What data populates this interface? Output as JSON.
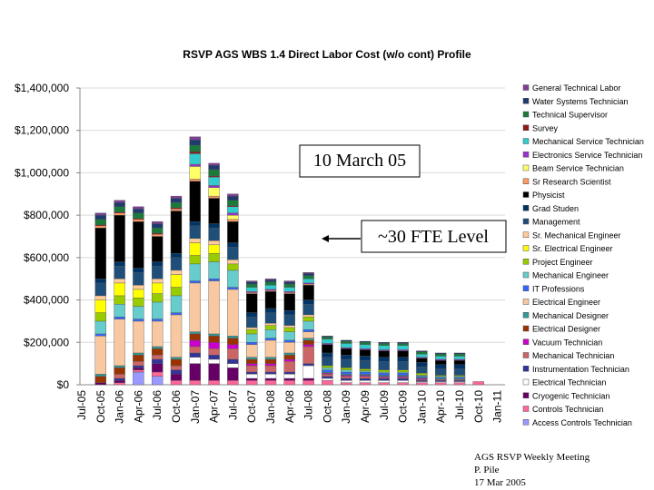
{
  "chart_data": {
    "type": "stacked_bar",
    "title": "RSVP AGS WBS 1.4 Direct Labor Cost (w/o cont) Profile",
    "annotations": [
      "10 March 05",
      "~30  FTE Level"
    ],
    "footer": [
      "AGS RSVP Weekly Meeting",
      "P. Pile",
      "17 Mar 2005"
    ],
    "categories": [
      "Jul-05",
      "Oct-05",
      "Jan-06",
      "Apr-06",
      "Jul-06",
      "Oct-06",
      "Jan-07",
      "Apr-07",
      "Jul-07",
      "Oct-07",
      "Jan-08",
      "Apr-08",
      "Jul-08",
      "Oct-08",
      "Jan-09",
      "Apr-09",
      "Jul-09",
      "Oct-09",
      "Jan-10",
      "Apr-10",
      "Jul-10",
      "Oct-10",
      "Jan-11"
    ],
    "ylim": [
      0,
      1400000
    ],
    "yticks": [
      {
        "value": 0,
        "label": "$0"
      },
      {
        "value": 200000,
        "label": "$200,000"
      },
      {
        "value": 400000,
        "label": "$400,000"
      },
      {
        "value": 600000,
        "label": "$600,000"
      },
      {
        "value": 800000,
        "label": "$800,000"
      },
      {
        "value": 1000000,
        "label": "$1,000,000"
      },
      {
        "value": 1200000,
        "label": "$1,200,000"
      },
      {
        "value": 1400000,
        "label": "$1,400,000"
      }
    ],
    "grid": true,
    "legend": "right",
    "series": [
      {
        "name": "General Technical Labor",
        "color": "#7f3f98",
        "values": [
          0,
          10000,
          10000,
          10000,
          10000,
          10000,
          15000,
          10000,
          10000,
          5000,
          5000,
          5000,
          5000,
          0,
          0,
          0,
          0,
          0,
          0,
          0,
          0,
          0,
          0
        ]
      },
      {
        "name": "Water Systems Technician",
        "color": "#1f3a6e",
        "values": [
          0,
          20000,
          20000,
          20000,
          20000,
          20000,
          25000,
          20000,
          20000,
          10000,
          10000,
          10000,
          10000,
          5000,
          5000,
          5000,
          5000,
          5000,
          5000,
          5000,
          5000,
          0,
          0
        ]
      },
      {
        "name": "Technical Supervisor",
        "color": "#1a7a3a",
        "values": [
          0,
          25000,
          25000,
          25000,
          25000,
          25000,
          30000,
          30000,
          25000,
          15000,
          15000,
          15000,
          15000,
          10000,
          10000,
          10000,
          10000,
          10000,
          10000,
          10000,
          10000,
          0,
          0
        ]
      },
      {
        "name": "Survey",
        "color": "#8b1a1a",
        "values": [
          0,
          5000,
          5000,
          5000,
          5000,
          5000,
          10000,
          5000,
          5000,
          0,
          0,
          0,
          0,
          0,
          0,
          0,
          0,
          0,
          0,
          0,
          0,
          0,
          0
        ]
      },
      {
        "name": "Mechanical Service Technician",
        "color": "#33cccc",
        "values": [
          0,
          0,
          0,
          0,
          0,
          0,
          50000,
          40000,
          30000,
          20000,
          20000,
          20000,
          20000,
          20000,
          20000,
          20000,
          20000,
          20000,
          15000,
          15000,
          15000,
          0,
          0
        ]
      },
      {
        "name": "Electronics Service Technician",
        "color": "#9933cc",
        "values": [
          0,
          0,
          0,
          0,
          0,
          0,
          10000,
          10000,
          10000,
          5000,
          5000,
          5000,
          5000,
          5000,
          5000,
          5000,
          5000,
          5000,
          5000,
          5000,
          5000,
          0,
          0
        ]
      },
      {
        "name": "Beam Service Technician",
        "color": "#ffff66",
        "values": [
          0,
          0,
          0,
          0,
          0,
          0,
          60000,
          40000,
          20000,
          0,
          0,
          0,
          0,
          0,
          0,
          0,
          0,
          0,
          0,
          0,
          0,
          0,
          0
        ]
      },
      {
        "name": "Sr Research Scientist",
        "color": "#ff9966",
        "values": [
          0,
          10000,
          10000,
          10000,
          10000,
          10000,
          10000,
          10000,
          10000,
          5000,
          5000,
          5000,
          5000,
          0,
          0,
          0,
          0,
          0,
          0,
          0,
          0,
          0,
          0
        ]
      },
      {
        "name": "Physicist",
        "color": "#000000",
        "values": [
          0,
          240000,
          220000,
          220000,
          120000,
          200000,
          190000,
          120000,
          100000,
          90000,
          80000,
          80000,
          70000,
          40000,
          30000,
          30000,
          30000,
          30000,
          20000,
          20000,
          20000,
          0,
          0
        ]
      },
      {
        "name": "Grad Studen",
        "color": "#003366",
        "values": [
          0,
          20000,
          20000,
          20000,
          20000,
          20000,
          20000,
          20000,
          20000,
          20000,
          20000,
          20000,
          20000,
          20000,
          20000,
          20000,
          20000,
          20000,
          20000,
          20000,
          20000,
          0,
          0
        ]
      },
      {
        "name": "Management",
        "color": "#1f4e79",
        "values": [
          0,
          60000,
          60000,
          60000,
          60000,
          60000,
          60000,
          60000,
          60000,
          50000,
          50000,
          50000,
          50000,
          40000,
          40000,
          40000,
          40000,
          40000,
          30000,
          30000,
          30000,
          0,
          0
        ]
      },
      {
        "name": "Sr. Mechanical Engineer",
        "color": "#ffcc99",
        "values": [
          0,
          20000,
          20000,
          20000,
          20000,
          20000,
          20000,
          20000,
          20000,
          10000,
          10000,
          10000,
          10000,
          0,
          0,
          0,
          0,
          0,
          0,
          0,
          0,
          0,
          0
        ]
      },
      {
        "name": "Sr. Electrical Engineer",
        "color": "#ffff00",
        "values": [
          0,
          60000,
          60000,
          40000,
          50000,
          60000,
          60000,
          40000,
          0,
          0,
          0,
          0,
          0,
          0,
          0,
          0,
          0,
          0,
          0,
          0,
          0,
          0,
          0
        ]
      },
      {
        "name": "Project Engineer",
        "color": "#99cc00",
        "values": [
          0,
          40000,
          40000,
          40000,
          40000,
          40000,
          40000,
          40000,
          30000,
          20000,
          20000,
          20000,
          20000,
          10000,
          10000,
          10000,
          10000,
          10000,
          10000,
          5000,
          5000,
          0,
          0
        ]
      },
      {
        "name": "Mechanical Engineer",
        "color": "#66cccc",
        "values": [
          0,
          60000,
          60000,
          60000,
          80000,
          80000,
          80000,
          80000,
          80000,
          40000,
          40000,
          40000,
          40000,
          10000,
          10000,
          5000,
          5000,
          5000,
          5000,
          5000,
          5000,
          0,
          0
        ]
      },
      {
        "name": "IT Professions",
        "color": "#3366ff",
        "values": [
          0,
          10000,
          10000,
          10000,
          10000,
          10000,
          10000,
          10000,
          10000,
          10000,
          10000,
          10000,
          10000,
          10000,
          10000,
          10000,
          10000,
          10000,
          5000,
          5000,
          5000,
          0,
          0
        ]
      },
      {
        "name": "Electrical Engineer",
        "color": "#f8c8a0",
        "values": [
          0,
          180000,
          220000,
          150000,
          120000,
          200000,
          230000,
          250000,
          220000,
          60000,
          80000,
          50000,
          30000,
          0,
          0,
          0,
          0,
          0,
          0,
          0,
          0,
          0,
          0
        ]
      },
      {
        "name": "Mechanical Designer",
        "color": "#339999",
        "values": [
          0,
          10000,
          10000,
          10000,
          10000,
          10000,
          10000,
          10000,
          10000,
          10000,
          10000,
          10000,
          10000,
          5000,
          5000,
          5000,
          5000,
          5000,
          5000,
          5000,
          5000,
          0,
          0
        ]
      },
      {
        "name": "Electrical Designer",
        "color": "#993300",
        "values": [
          0,
          30000,
          30000,
          30000,
          30000,
          30000,
          30000,
          30000,
          30000,
          20000,
          20000,
          20000,
          20000,
          0,
          0,
          0,
          0,
          0,
          0,
          0,
          0,
          0,
          0
        ]
      },
      {
        "name": "Vacuum Technician",
        "color": "#cc00cc",
        "values": [
          0,
          0,
          0,
          0,
          0,
          0,
          30000,
          30000,
          20000,
          10000,
          10000,
          10000,
          10000,
          5000,
          5000,
          5000,
          5000,
          5000,
          5000,
          0,
          0,
          0,
          0
        ]
      },
      {
        "name": "Mechanical Technician",
        "color": "#cc6666",
        "values": [
          0,
          0,
          20000,
          20000,
          20000,
          20000,
          30000,
          30000,
          50000,
          30000,
          30000,
          50000,
          80000,
          10000,
          10000,
          10000,
          5000,
          5000,
          5000,
          5000,
          5000,
          0,
          0
        ]
      },
      {
        "name": "Instrumentation Technician",
        "color": "#333399",
        "values": [
          0,
          0,
          10000,
          10000,
          20000,
          20000,
          20000,
          20000,
          20000,
          10000,
          10000,
          10000,
          10000,
          10000,
          10000,
          10000,
          10000,
          10000,
          5000,
          5000,
          5000,
          0,
          0
        ]
      },
      {
        "name": "Electrical Technician",
        "color": "#ffffff",
        "values": [
          0,
          0,
          0,
          0,
          0,
          0,
          30000,
          20000,
          20000,
          20000,
          20000,
          20000,
          60000,
          10000,
          10000,
          10000,
          10000,
          10000,
          5000,
          5000,
          5000,
          0,
          0
        ]
      },
      {
        "name": "Cryogenic Technician",
        "color": "#660066",
        "values": [
          0,
          10000,
          10000,
          10000,
          40000,
          30000,
          80000,
          80000,
          60000,
          10000,
          10000,
          10000,
          10000,
          0,
          0,
          0,
          0,
          0,
          0,
          0,
          0,
          0,
          0
        ]
      },
      {
        "name": "Controls Technician",
        "color": "#ff6699",
        "values": [
          0,
          0,
          10000,
          10000,
          20000,
          20000,
          20000,
          20000,
          20000,
          20000,
          20000,
          20000,
          20000,
          20000,
          10000,
          10000,
          10000,
          10000,
          10000,
          10000,
          10000,
          15000,
          0
        ]
      },
      {
        "name": "Access Controls Technician",
        "color": "#9999ff",
        "values": [
          0,
          0,
          0,
          60000,
          40000,
          0,
          0,
          0,
          0,
          0,
          0,
          0,
          0,
          0,
          0,
          0,
          0,
          0,
          0,
          0,
          0,
          0,
          0
        ]
      }
    ]
  }
}
